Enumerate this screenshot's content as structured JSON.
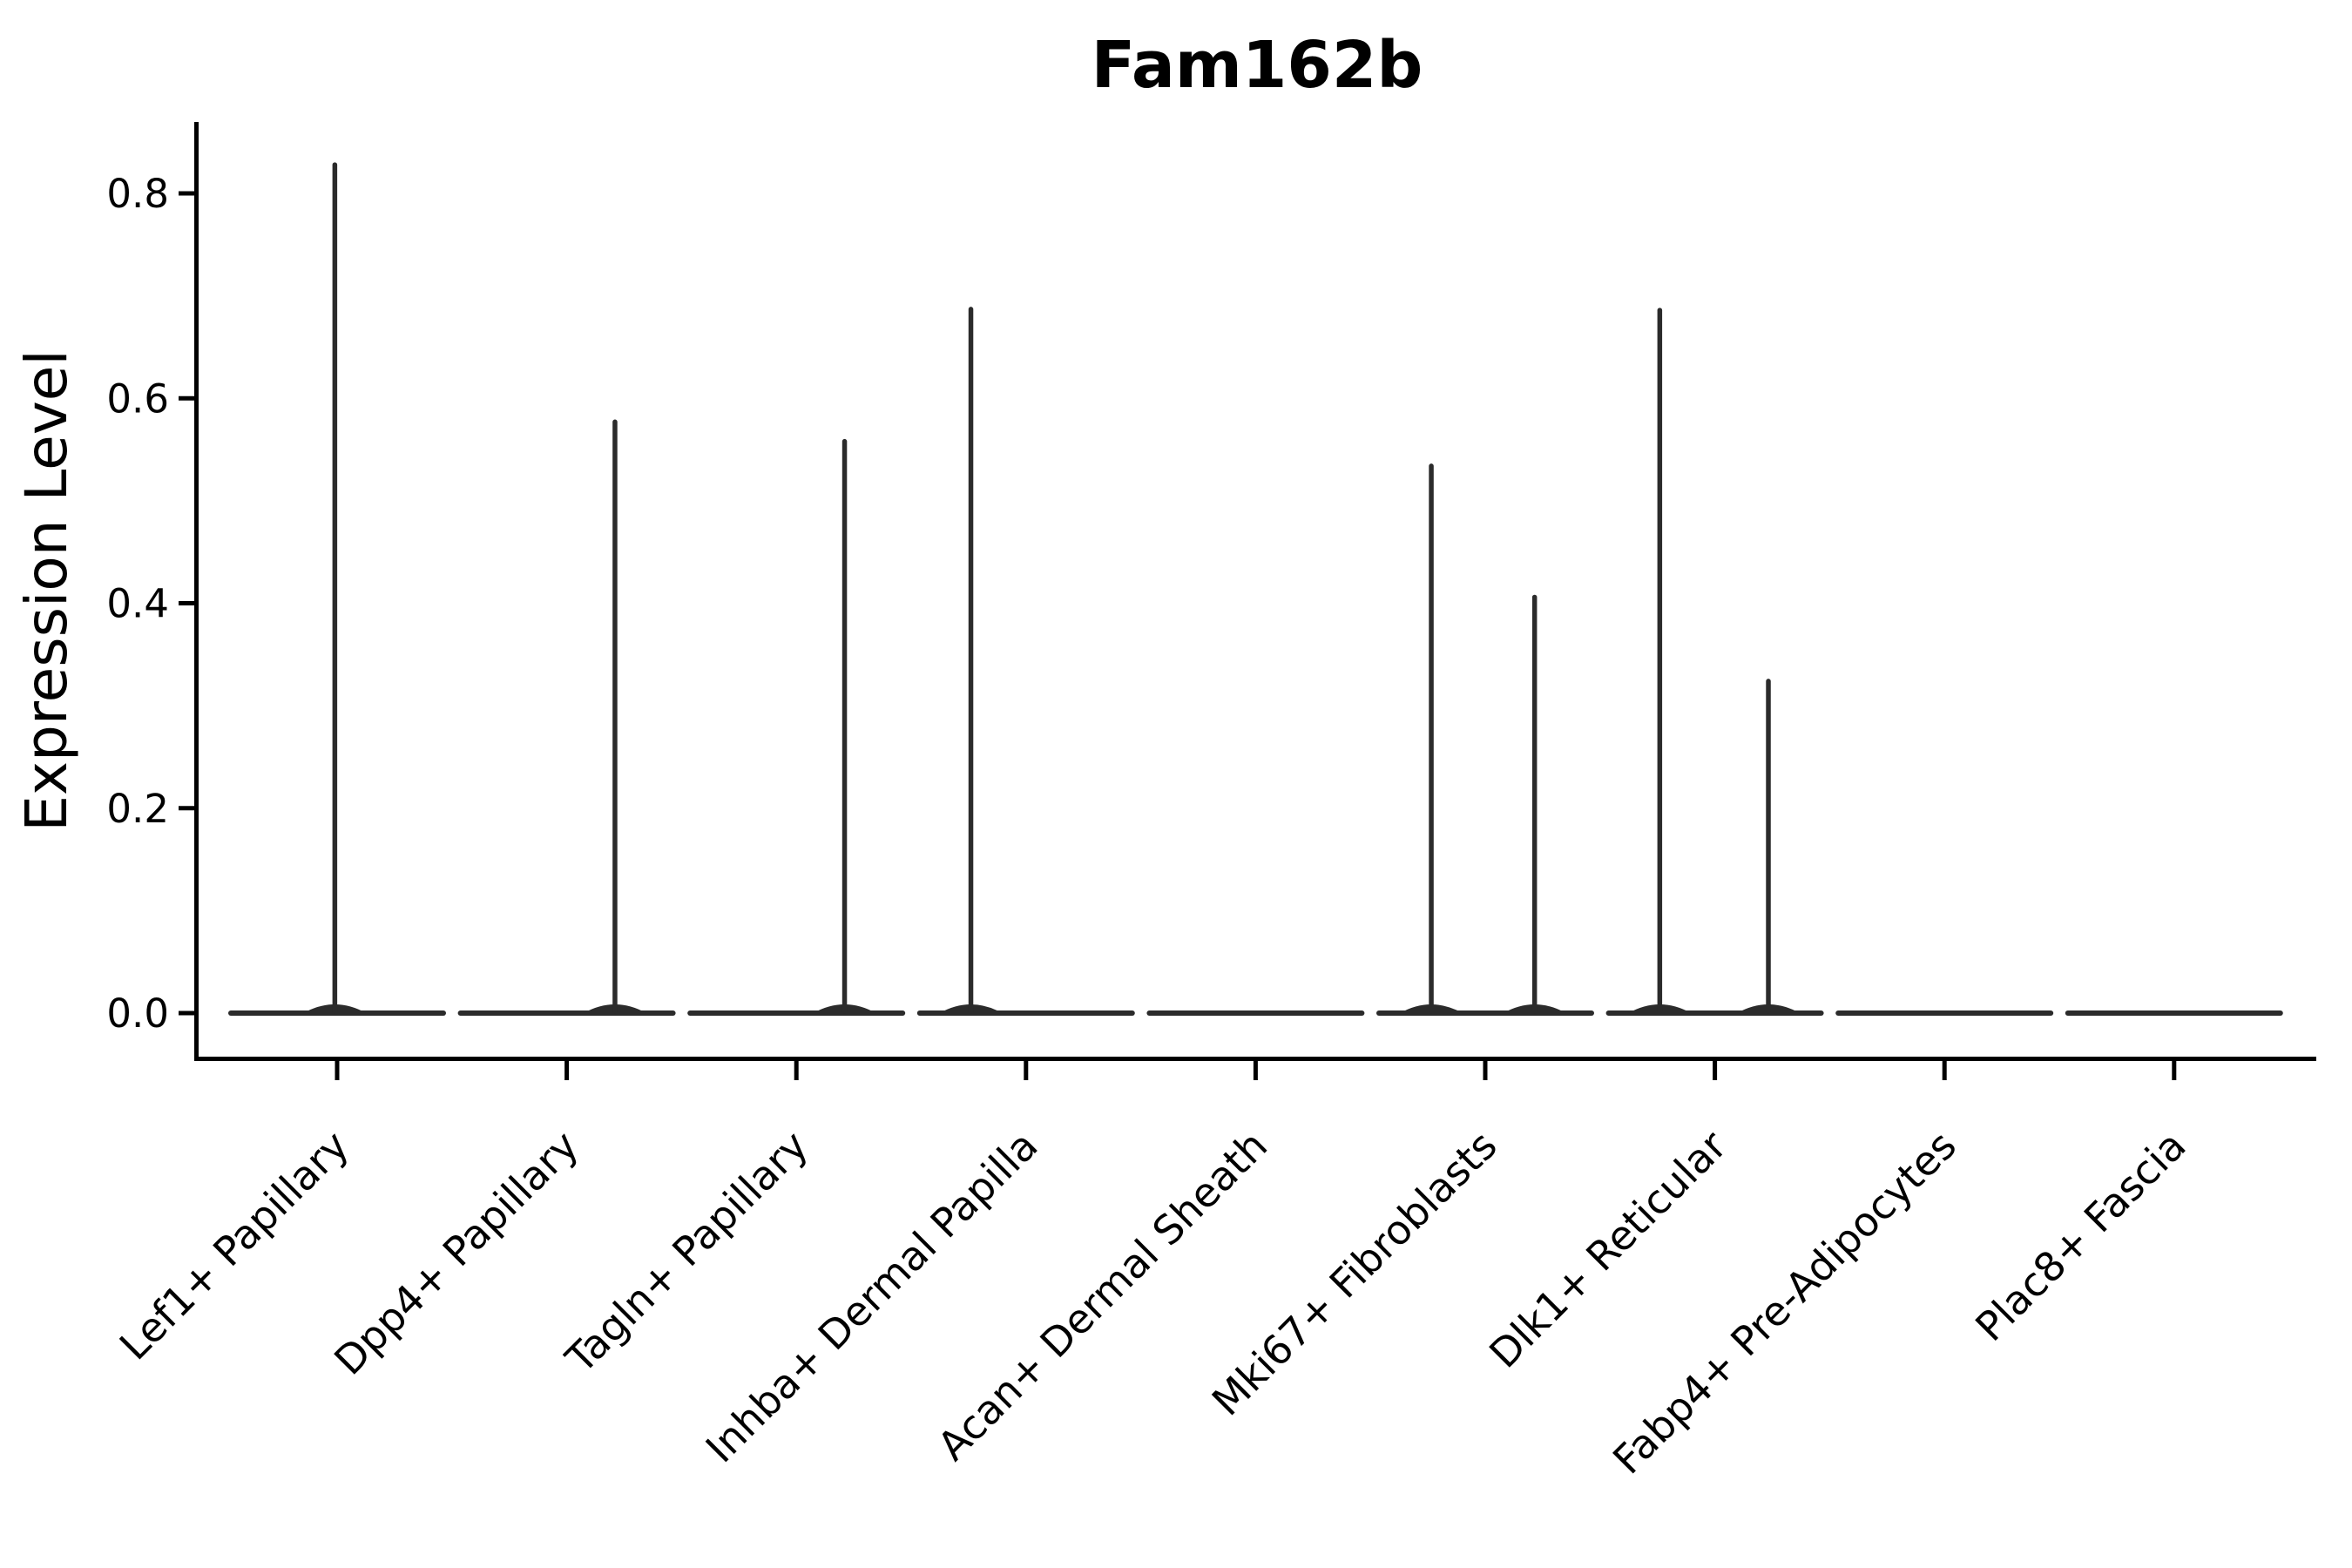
{
  "chart_data": {
    "type": "violin",
    "title": "Fam162b",
    "ylabel": "Expression Level",
    "xlabel": "",
    "categories": [
      "Lef1+ Papillary",
      "Dpp4+ Papillary",
      "Tagln+ Papillary",
      "Inhba+ Dermal Papilla",
      "Acan+ Dermal Sheath",
      "Mki67+ Fibroblasts",
      "Dlk1+ Reticular",
      "Fabp4+ Pre-Adipocytes",
      "Plac8+ Fascia"
    ],
    "yticks": [
      0.0,
      0.2,
      0.4,
      0.6,
      0.8
    ],
    "ytick_labels": [
      "0.0",
      "0.2",
      "0.4",
      "0.6",
      "0.8"
    ],
    "ylim": [
      0.0,
      0.87
    ],
    "grid": false,
    "legend_position": "none",
    "x_tick_label_rotation_deg": 45,
    "violins": [
      {
        "category": "Lef1+ Papillary",
        "peaks": [
          {
            "position": -0.01,
            "value": 0.828
          }
        ]
      },
      {
        "category": "Dpp4+ Papillary",
        "peaks": [
          {
            "position": 0.21,
            "value": 0.577
          }
        ]
      },
      {
        "category": "Tagln+ Papillary",
        "peaks": [
          {
            "position": 0.21,
            "value": 0.558
          }
        ]
      },
      {
        "category": "Inhba+ Dermal Papilla",
        "peaks": [
          {
            "position": -0.24,
            "value": 0.687
          }
        ]
      },
      {
        "category": "Acan+ Dermal Sheath",
        "peaks": []
      },
      {
        "category": "Mki67+ Fibroblasts",
        "peaks": [
          {
            "position": -0.235,
            "value": 0.534
          },
          {
            "position": 0.215,
            "value": 0.406
          }
        ]
      },
      {
        "category": "Dlk1+ Reticular",
        "peaks": [
          {
            "position": -0.24,
            "value": 0.686
          },
          {
            "position": 0.233,
            "value": 0.324
          }
        ]
      },
      {
        "category": "Fabp4+ Pre-Adipocytes",
        "peaks": []
      },
      {
        "category": "Plac8+ Fascia",
        "peaks": []
      }
    ],
    "colors": {
      "violin_line": "#2b2b2b",
      "axis": "#000000",
      "text": "#000000",
      "background": "#ffffff"
    }
  }
}
